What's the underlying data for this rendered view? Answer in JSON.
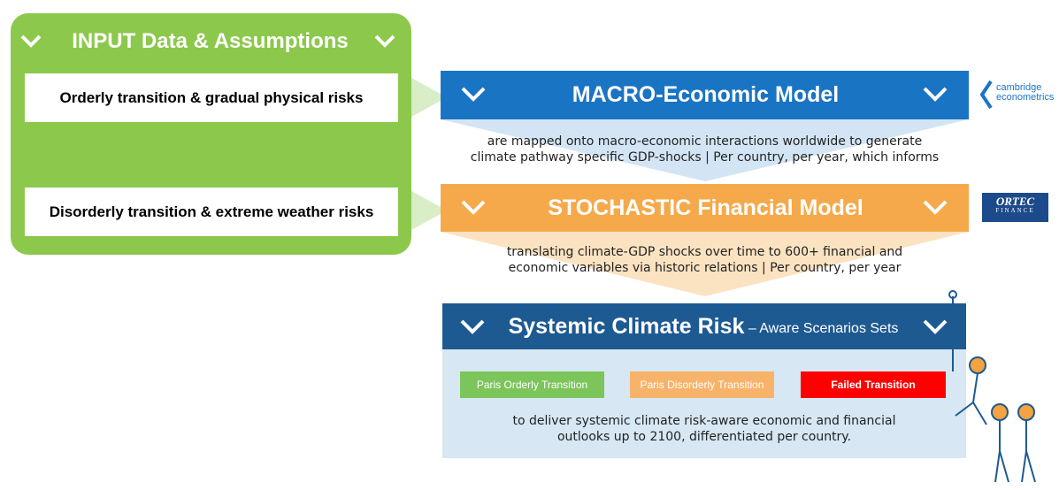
{
  "input": {
    "title": "INPUT Data & Assumptions",
    "items": [
      "Orderly transition & gradual physical risks",
      "Disorderly transition & extreme weather risks"
    ]
  },
  "macro": {
    "title": "MACRO-Economic Model",
    "logo": [
      "cambridge",
      "econometrics"
    ],
    "description": [
      "are mapped onto macro-economic interactions worldwide to generate",
      "climate pathway specific GDP-shocks | Per country, per year, which informs"
    ]
  },
  "stochastic": {
    "title": "STOCHASTIC Financial Model",
    "logo": [
      "ORTEC",
      "FINANCE"
    ],
    "description": [
      "translating climate-GDP shocks over time to 600+ financial and",
      "economic variables via historic relations | Per country, per year"
    ]
  },
  "systemic": {
    "title": "Systemic Climate Risk",
    "subtitle": " – Aware Scenarios Sets",
    "scenarios": [
      "Paris Orderly Transition",
      "Paris Disorderly Transition",
      "Failed Transition"
    ],
    "description": [
      "to deliver systemic climate risk-aware economic and financial",
      "outlooks up to 2100, differentiated per country."
    ]
  }
}
